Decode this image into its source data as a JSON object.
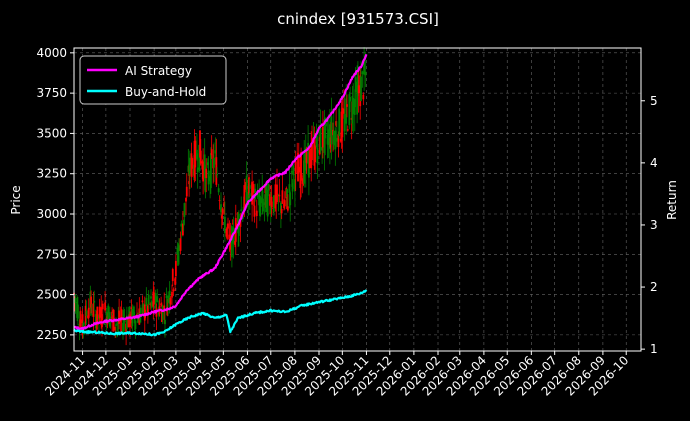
{
  "chart_data": {
    "type": "line",
    "title": "cnindex [931573.CSI]",
    "ylabel": "Price",
    "y2label": "Return",
    "grid": true,
    "legend_position": "top-left",
    "price_ylim": [
      2150,
      4030
    ],
    "return_ylim": [
      0.97,
      5.85
    ],
    "x_range": [
      "2024-10-21",
      "2026-10-20"
    ],
    "x_ticks": [
      "2024-11",
      "2024-12",
      "2025-01",
      "2025-02",
      "2025-03",
      "2025-04",
      "2025-05",
      "2025-06",
      "2025-07",
      "2025-08",
      "2025-09",
      "2025-10",
      "2025-11",
      "2025-12",
      "2026-01",
      "2026-02",
      "2026-03",
      "2026-04",
      "2026-05",
      "2026-06",
      "2026-07",
      "2026-08",
      "2026-09",
      "2026-10"
    ],
    "price_ticks": [
      2250,
      2500,
      2750,
      3000,
      3250,
      3500,
      3750,
      4000
    ],
    "return_ticks": [
      1,
      2,
      3,
      4,
      5
    ],
    "colors": {
      "ai_strategy": "#ff00ff",
      "buy_and_hold": "#00ffff",
      "candle_up": "#ff0000",
      "candle_down": "#008000",
      "grid": "#666666",
      "background": "#000000"
    },
    "series": [
      {
        "name": "AI Strategy",
        "axis": "return",
        "points": [
          [
            "2024-10-21",
            1.35
          ],
          [
            "2024-11-01",
            1.33
          ],
          [
            "2024-11-15",
            1.4
          ],
          [
            "2024-12-01",
            1.45
          ],
          [
            "2024-12-20",
            1.48
          ],
          [
            "2025-01-10",
            1.52
          ],
          [
            "2025-02-01",
            1.6
          ],
          [
            "2025-02-20",
            1.65
          ],
          [
            "2025-03-01",
            1.7
          ],
          [
            "2025-03-15",
            1.95
          ],
          [
            "2025-04-01",
            2.15
          ],
          [
            "2025-04-20",
            2.3
          ],
          [
            "2025-05-01",
            2.55
          ],
          [
            "2025-05-10",
            2.75
          ],
          [
            "2025-05-20",
            3.0
          ],
          [
            "2025-06-01",
            3.35
          ],
          [
            "2025-06-20",
            3.6
          ],
          [
            "2025-07-01",
            3.75
          ],
          [
            "2025-07-20",
            3.85
          ],
          [
            "2025-08-01",
            4.05
          ],
          [
            "2025-08-20",
            4.25
          ],
          [
            "2025-09-01",
            4.55
          ],
          [
            "2025-09-15",
            4.75
          ],
          [
            "2025-10-01",
            5.05
          ],
          [
            "2025-10-15",
            5.4
          ],
          [
            "2025-10-25",
            5.55
          ],
          [
            "2025-11-01",
            5.75
          ]
        ]
      },
      {
        "name": "Buy-and-Hold",
        "axis": "return",
        "points": [
          [
            "2024-10-21",
            1.3
          ],
          [
            "2024-11-01",
            1.28
          ],
          [
            "2024-11-20",
            1.27
          ],
          [
            "2024-12-10",
            1.25
          ],
          [
            "2025-01-01",
            1.26
          ],
          [
            "2025-01-20",
            1.25
          ],
          [
            "2025-02-01",
            1.23
          ],
          [
            "2025-02-15",
            1.28
          ],
          [
            "2025-03-01",
            1.4
          ],
          [
            "2025-03-20",
            1.52
          ],
          [
            "2025-04-05",
            1.58
          ],
          [
            "2025-04-20",
            1.5
          ],
          [
            "2025-05-05",
            1.55
          ],
          [
            "2025-05-10",
            1.28
          ],
          [
            "2025-05-20",
            1.5
          ],
          [
            "2025-06-10",
            1.58
          ],
          [
            "2025-07-01",
            1.62
          ],
          [
            "2025-07-20",
            1.6
          ],
          [
            "2025-08-10",
            1.7
          ],
          [
            "2025-09-01",
            1.76
          ],
          [
            "2025-09-20",
            1.8
          ],
          [
            "2025-10-10",
            1.85
          ],
          [
            "2025-10-25",
            1.9
          ],
          [
            "2025-11-01",
            1.95
          ]
        ]
      },
      {
        "name": "cnindex [931573.CSI]",
        "axis": "price",
        "points": [
          [
            "2024-10-21",
            2500
          ],
          [
            "2024-11-01",
            2300
          ],
          [
            "2024-11-10",
            2450
          ],
          [
            "2024-11-20",
            2350
          ],
          [
            "2024-12-01",
            2400
          ],
          [
            "2024-12-15",
            2320
          ],
          [
            "2025-01-01",
            2350
          ],
          [
            "2025-01-15",
            2380
          ],
          [
            "2025-02-01",
            2450
          ],
          [
            "2025-02-15",
            2400
          ],
          [
            "2025-03-01",
            2650
          ],
          [
            "2025-03-10",
            2950
          ],
          [
            "2025-03-20",
            3300
          ],
          [
            "2025-04-01",
            3400
          ],
          [
            "2025-04-10",
            3200
          ],
          [
            "2025-04-20",
            3350
          ],
          [
            "2025-05-01",
            3000
          ],
          [
            "2025-05-10",
            2800
          ],
          [
            "2025-05-20",
            2950
          ],
          [
            "2025-06-01",
            3150
          ],
          [
            "2025-06-15",
            3050
          ],
          [
            "2025-07-01",
            3100
          ],
          [
            "2025-07-20",
            3050
          ],
          [
            "2025-08-01",
            3250
          ],
          [
            "2025-08-15",
            3300
          ],
          [
            "2025-09-01",
            3450
          ],
          [
            "2025-09-15",
            3500
          ],
          [
            "2025-10-01",
            3550
          ],
          [
            "2025-10-15",
            3700
          ],
          [
            "2025-11-01",
            3850
          ]
        ]
      }
    ]
  }
}
